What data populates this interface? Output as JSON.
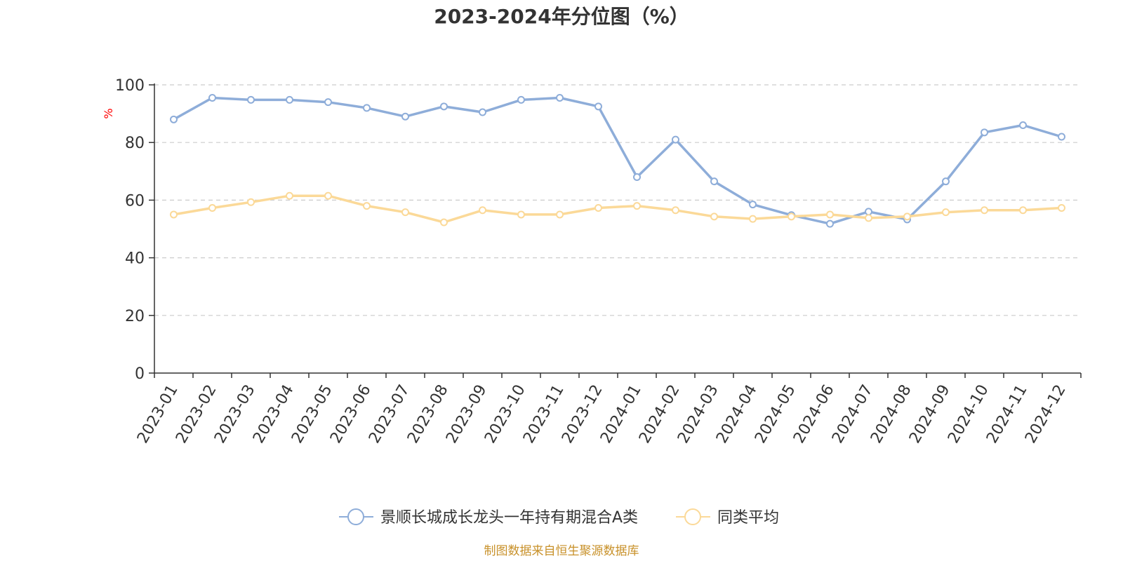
{
  "chart_data": {
    "type": "line",
    "title": "2023-2024年分位图（%）",
    "ylabel": "%",
    "ylim": [
      0,
      100
    ],
    "yticks": [
      "0",
      "20",
      "40",
      "60",
      "80",
      "100"
    ],
    "ytick_values": [
      0,
      20,
      40,
      60,
      80,
      100
    ],
    "grid": true,
    "legend_position": "bottom-center",
    "categories": [
      "2023-01",
      "2023-02",
      "2023-03",
      "2023-04",
      "2023-05",
      "2023-06",
      "2023-07",
      "2023-08",
      "2023-09",
      "2023-10",
      "2023-11",
      "2023-12",
      "2024-01",
      "2024-02",
      "2024-03",
      "2024-04",
      "2024-05",
      "2024-06",
      "2024-07",
      "2024-08",
      "2024-09",
      "2024-10",
      "2024-11",
      "2024-12"
    ],
    "series": [
      {
        "name": "景顺长城成长龙头一年持有期混合A类",
        "color": "#8eadd9",
        "values": [
          88,
          95.5,
          94.8,
          94.8,
          94,
          92,
          89,
          92.5,
          90.5,
          94.8,
          95.5,
          92.5,
          68,
          81,
          66.5,
          58.5,
          54.8,
          51.8,
          56,
          53.3,
          66.5,
          83.5,
          86,
          82
        ]
      },
      {
        "name": "同类平均",
        "color": "#fbd998",
        "values": [
          55,
          57.3,
          59.3,
          61.5,
          61.5,
          58,
          55.8,
          52.3,
          56.5,
          55,
          55,
          57.3,
          58,
          56.5,
          54.3,
          53.5,
          54.3,
          55,
          53.8,
          54.3,
          55.8,
          56.5,
          56.5,
          57.3
        ]
      }
    ]
  },
  "footer": {
    "source_text": "制图数据来自恒生聚源数据库",
    "source_color": "#c8912a"
  },
  "colors": {
    "axis": "#333333",
    "grid": "#cccccc",
    "ylabel": "#ff0000"
  }
}
